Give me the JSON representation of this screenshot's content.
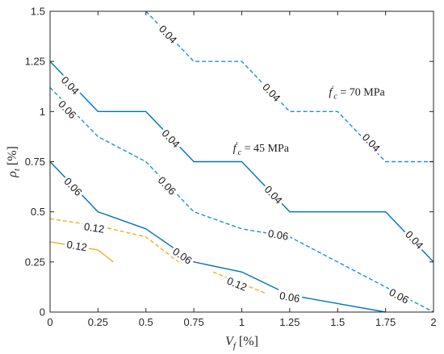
{
  "chart_data": {
    "type": "line",
    "xlabel": "V_f [%]",
    "ylabel": "ρ_t [%]",
    "xlim": [
      0,
      2
    ],
    "ylim": [
      0,
      1.5
    ],
    "xticks": [
      "0",
      "0.25",
      "0.5",
      "0.75",
      "1",
      "1.25",
      "1.5",
      "1.75",
      "2"
    ],
    "yticks": [
      "0",
      "0.25",
      "0.5",
      "0.75",
      "1",
      "1.25",
      "1.5"
    ],
    "grid": false,
    "colors": {
      "solid": "#0072BD",
      "dashed": "#1E90D8",
      "orange": "#EDB120"
    },
    "series": [
      {
        "style": "dashed",
        "color": "#1E90D8",
        "label": "0.04",
        "points": [
          [
            0.5,
            1.5
          ],
          [
            0.75,
            1.25
          ],
          [
            1.0,
            1.25
          ],
          [
            1.25,
            1.0
          ],
          [
            1.5,
            1.0
          ],
          [
            1.75,
            0.75
          ],
          [
            2.0,
            0.75
          ]
        ],
        "labels": [
          {
            "x": 0.615,
            "y": 1.385,
            "text": "0.04"
          },
          {
            "x": 1.155,
            "y": 1.095,
            "text": "0.04"
          },
          {
            "x": 1.675,
            "y": 0.845,
            "text": "0.04"
          }
        ]
      },
      {
        "style": "solid",
        "color": "#0072BD",
        "label": "0.04",
        "points": [
          [
            0.0,
            1.25
          ],
          [
            0.25,
            1.0
          ],
          [
            0.5,
            1.0
          ],
          [
            0.75,
            0.75
          ],
          [
            1.0,
            0.75
          ],
          [
            1.25,
            0.5
          ],
          [
            1.75,
            0.5
          ],
          [
            2.0,
            0.25
          ]
        ],
        "labels": [
          {
            "x": 0.105,
            "y": 1.13,
            "text": "0.04"
          },
          {
            "x": 0.63,
            "y": 0.865,
            "text": "0.04"
          },
          {
            "x": 1.165,
            "y": 0.585,
            "text": "0.04"
          },
          {
            "x": 1.9,
            "y": 0.36,
            "text": "0.04"
          }
        ]
      },
      {
        "style": "dashed",
        "color": "#1E90D8",
        "label": "0.06",
        "points": [
          [
            0.0,
            1.12
          ],
          [
            0.25,
            0.875
          ],
          [
            0.5,
            0.75
          ],
          [
            0.75,
            0.5
          ],
          [
            1.0,
            0.415
          ],
          [
            1.25,
            0.375
          ],
          [
            1.75,
            0.125
          ],
          [
            2.0,
            0.0
          ]
        ],
        "labels": [
          {
            "x": 0.09,
            "y": 1.01,
            "text": "0.06"
          },
          {
            "x": 0.61,
            "y": 0.63,
            "text": "0.06"
          },
          {
            "x": 1.19,
            "y": 0.385,
            "text": "0.06"
          },
          {
            "x": 1.82,
            "y": 0.08,
            "text": "0.06"
          }
        ]
      },
      {
        "style": "solid",
        "color": "#0072BD",
        "label": "0.06",
        "points": [
          [
            0.0,
            0.75
          ],
          [
            0.25,
            0.5
          ],
          [
            0.5,
            0.415
          ],
          [
            0.75,
            0.25
          ],
          [
            1.0,
            0.2
          ],
          [
            1.25,
            0.085
          ],
          [
            1.75,
            0.0
          ]
        ],
        "labels": [
          {
            "x": 0.12,
            "y": 0.625,
            "text": "0.06"
          },
          {
            "x": 0.69,
            "y": 0.28,
            "text": "0.06"
          },
          {
            "x": 1.25,
            "y": 0.075,
            "text": "0.06"
          }
        ]
      },
      {
        "style": "dashed",
        "color": "#EDB120",
        "label": "0.12",
        "points": [
          [
            0.0,
            0.465
          ],
          [
            0.25,
            0.43
          ],
          [
            0.5,
            0.375
          ],
          [
            0.67,
            0.25
          ]
        ],
        "labels": [
          {
            "x": 0.23,
            "y": 0.42,
            "text": "0.12"
          }
        ]
      },
      {
        "style": "dashed",
        "color": "#EDB120",
        "label": "0.12",
        "points": [
          [
            0.85,
            0.2
          ],
          [
            1.12,
            0.095
          ]
        ],
        "labels": [
          {
            "x": 0.975,
            "y": 0.14,
            "text": "0.12"
          }
        ]
      },
      {
        "style": "solid",
        "color": "#EDB120",
        "label": "0.12",
        "points": [
          [
            0.0,
            0.35
          ],
          [
            0.25,
            0.31
          ],
          [
            0.33,
            0.25
          ]
        ],
        "labels": [
          {
            "x": 0.14,
            "y": 0.33,
            "text": "0.12"
          }
        ]
      }
    ],
    "annotations": [
      {
        "text": "f'_c = 70 MPa",
        "x": 1.6,
        "y": 1.1
      },
      {
        "text": "f'_c = 45 MPa",
        "x": 1.1,
        "y": 0.82
      }
    ]
  }
}
